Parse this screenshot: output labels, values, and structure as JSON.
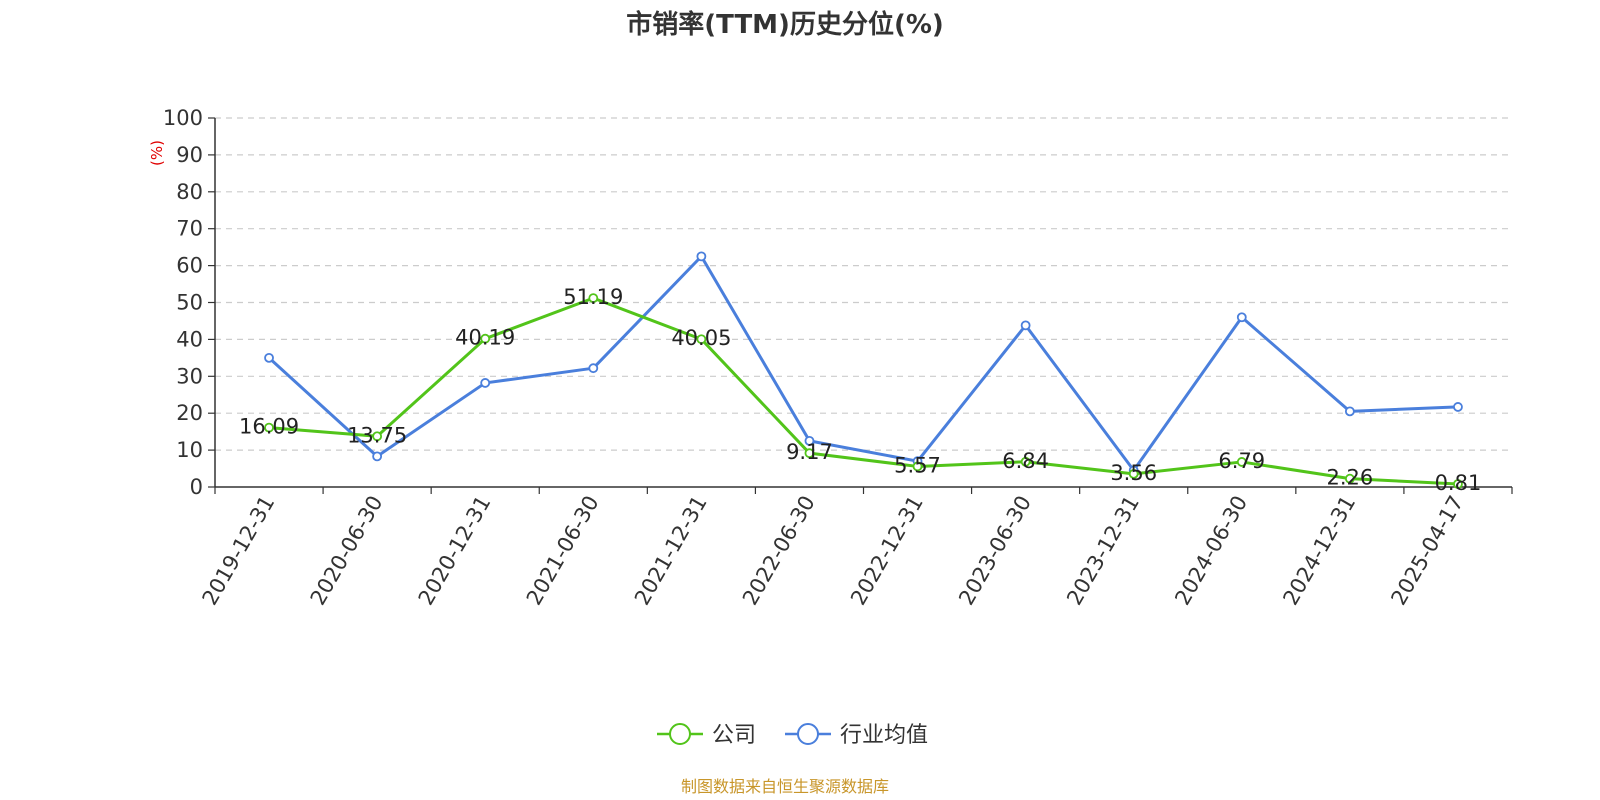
{
  "chart_data": {
    "type": "line",
    "title": "市销率(TTM)历史分位(%)",
    "ylabel": "(%)",
    "xlabel": "",
    "ylim": [
      0,
      100
    ],
    "yticks": [
      0,
      10,
      20,
      30,
      40,
      50,
      60,
      70,
      80,
      90,
      100
    ],
    "grid": true,
    "legend_position": "bottom-center",
    "categories": [
      "2019-12-31",
      "2020-06-30",
      "2020-12-31",
      "2021-06-30",
      "2021-12-31",
      "2022-06-30",
      "2022-12-31",
      "2023-06-30",
      "2023-12-31",
      "2024-06-30",
      "2024-12-31",
      "2025-04-17"
    ],
    "series": [
      {
        "name": "公司",
        "color": "#52c41a",
        "values": [
          16.09,
          13.75,
          40.19,
          51.19,
          40.05,
          9.17,
          5.57,
          6.84,
          3.56,
          6.79,
          2.26,
          0.81
        ],
        "labels": [
          "16.09",
          "13.75",
          "40.19",
          "51.19",
          "40.05",
          "9.17",
          "5.57",
          "6.84",
          "3.56",
          "6.79",
          "2.26",
          "0.81"
        ]
      },
      {
        "name": "行业均值",
        "color": "#4a7fdc",
        "values": [
          35.0,
          8.3,
          28.2,
          32.2,
          62.5,
          12.5,
          7.0,
          43.8,
          4.5,
          46.0,
          20.5,
          21.7
        ]
      }
    ],
    "source": "制图数据来自恒生聚源数据库"
  }
}
